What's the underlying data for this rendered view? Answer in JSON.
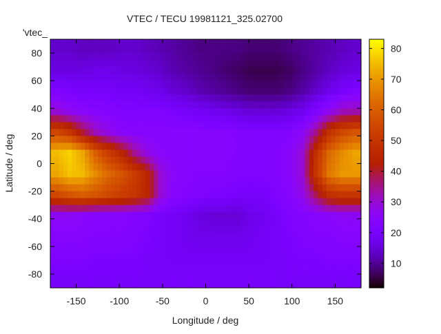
{
  "chart_data": {
    "type": "heatmap",
    "title": "VTEC / TECU 19981121_325.02700",
    "key_label": "'vtec_",
    "xlabel": "Longitude / deg",
    "ylabel": "Latitude / deg",
    "xlim": [
      -180,
      180
    ],
    "ylim": [
      -90,
      90
    ],
    "xticks": [
      -150,
      -100,
      -50,
      0,
      50,
      100,
      150
    ],
    "yticks": [
      -80,
      -60,
      -40,
      -20,
      0,
      20,
      40,
      60,
      80
    ],
    "colorbar": {
      "range": [
        2,
        83
      ],
      "ticks": [
        10,
        20,
        30,
        40,
        50,
        60,
        70,
        80
      ],
      "palette": "black-purple-red-orange-yellow"
    },
    "grid_lon_centers": [
      -172.5,
      -157.5,
      -142.5,
      -127.5,
      -112.5,
      -97.5,
      -82.5,
      -67.5,
      -52.5,
      -37.5,
      -22.5,
      -7.5,
      7.5,
      22.5,
      37.5,
      52.5,
      67.5,
      82.5,
      97.5,
      112.5,
      127.5,
      142.5,
      157.5,
      172.5
    ],
    "grid_lat_centers": [
      82.5,
      67.5,
      52.5,
      37.5,
      22.5,
      7.5,
      -7.5,
      -22.5,
      -37.5,
      -52.5,
      -67.5,
      -82.5
    ],
    "values": [
      [
        14,
        14,
        13,
        13,
        13,
        14,
        14,
        13,
        12,
        11,
        10,
        9,
        9,
        9,
        9,
        8,
        8,
        8,
        9,
        10,
        11,
        12,
        13,
        14
      ],
      [
        16,
        16,
        16,
        17,
        17,
        16,
        16,
        15,
        14,
        12,
        11,
        10,
        9,
        8,
        7,
        6,
        6,
        6,
        7,
        9,
        11,
        13,
        15,
        16
      ],
      [
        22,
        21,
        20,
        20,
        20,
        19,
        19,
        18,
        17,
        15,
        14,
        12,
        11,
        10,
        9,
        8,
        8,
        8,
        9,
        11,
        14,
        17,
        20,
        22
      ],
      [
        30,
        27,
        25,
        24,
        23,
        22,
        22,
        22,
        22,
        21,
        20,
        19,
        18,
        17,
        16,
        15,
        15,
        15,
        16,
        18,
        22,
        27,
        32,
        33
      ],
      [
        55,
        50,
        40,
        32,
        28,
        25,
        24,
        24,
        24,
        24,
        24,
        24,
        24,
        24,
        23,
        22,
        22,
        22,
        23,
        26,
        35,
        48,
        55,
        58
      ],
      [
        75,
        78,
        72,
        60,
        52,
        45,
        35,
        28,
        25,
        24,
        24,
        24,
        24,
        24,
        23,
        22,
        22,
        23,
        25,
        30,
        48,
        62,
        68,
        72
      ],
      [
        72,
        76,
        75,
        68,
        62,
        58,
        52,
        45,
        30,
        25,
        24,
        23,
        23,
        23,
        22,
        22,
        22,
        23,
        25,
        30,
        50,
        65,
        70,
        70
      ],
      [
        55,
        58,
        60,
        58,
        55,
        52,
        50,
        45,
        30,
        24,
        23,
        22,
        21,
        21,
        20,
        20,
        20,
        22,
        24,
        28,
        38,
        48,
        50,
        50
      ],
      [
        26,
        26,
        25,
        24,
        24,
        24,
        23,
        22,
        20,
        19,
        18,
        16,
        15,
        15,
        15,
        17,
        18,
        20,
        22,
        23,
        24,
        25,
        26,
        26
      ],
      [
        24,
        24,
        24,
        23,
        23,
        23,
        22,
        21,
        20,
        19,
        18,
        17,
        17,
        17,
        17,
        18,
        19,
        20,
        21,
        22,
        23,
        23,
        24,
        24
      ],
      [
        22,
        22,
        22,
        21,
        21,
        21,
        21,
        20,
        20,
        19,
        19,
        19,
        19,
        19,
        19,
        19,
        19,
        20,
        20,
        21,
        21,
        22,
        22,
        22
      ],
      [
        20,
        20,
        20,
        20,
        20,
        20,
        20,
        20,
        20,
        20,
        20,
        20,
        20,
        20,
        20,
        20,
        20,
        20,
        20,
        20,
        20,
        20,
        20,
        20
      ]
    ]
  }
}
